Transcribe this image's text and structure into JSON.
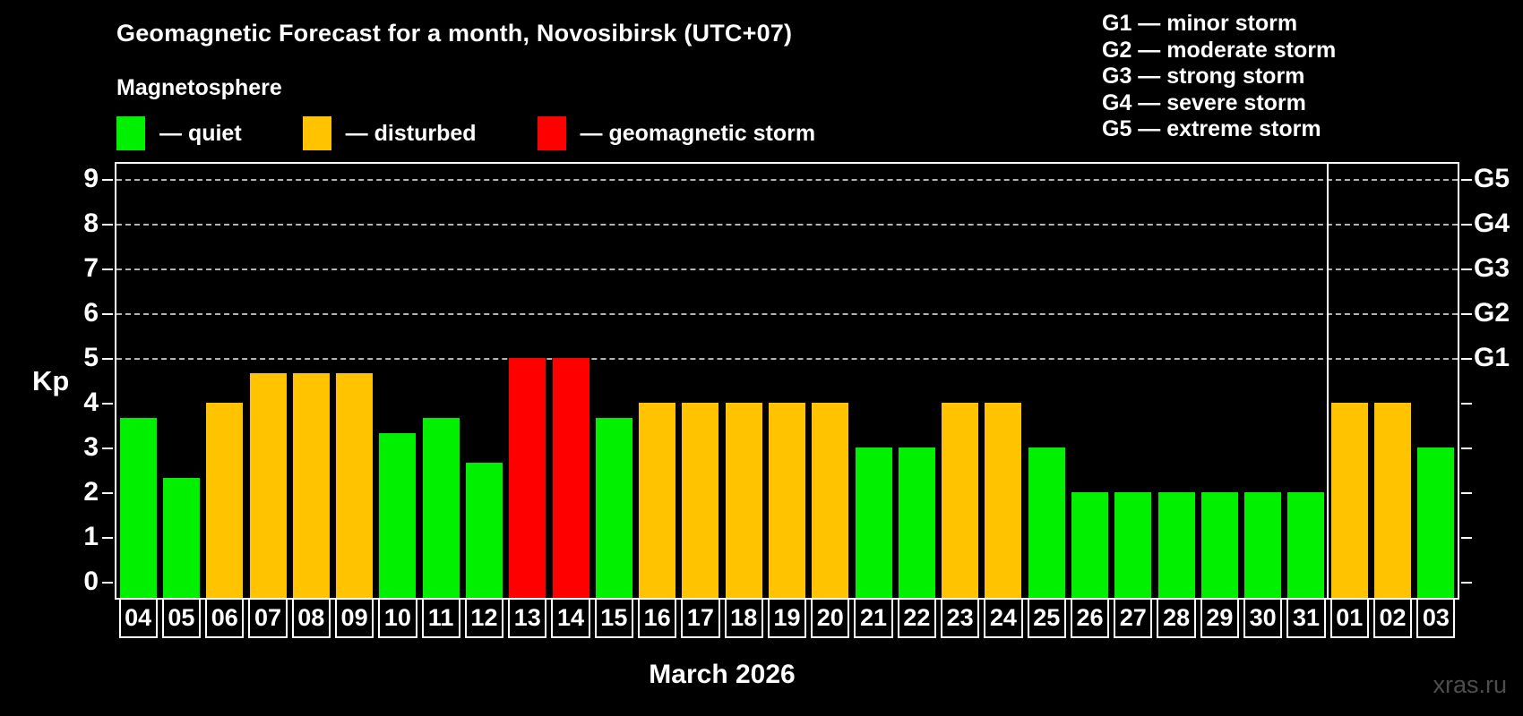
{
  "title": "Geomagnetic Forecast for a month, Novosibirsk (UTC+07)",
  "subtitle": "Magnetosphere",
  "legend": {
    "items": [
      {
        "key": "quiet",
        "label": "— quiet"
      },
      {
        "key": "disturbed",
        "label": "— disturbed"
      },
      {
        "key": "storm",
        "label": "— geomagnetic storm"
      }
    ]
  },
  "storm_scale_legend": {
    "items": [
      "G1 — minor storm",
      "G2 — moderate storm",
      "G3 — strong storm",
      "G4 — severe storm",
      "G5 — extreme storm"
    ]
  },
  "chart_data": {
    "type": "bar",
    "title": "Geomagnetic Forecast for a month, Novosibirsk (UTC+07)",
    "ylabel": "Kp",
    "xlabel": "March 2026",
    "ylim": [
      0,
      9
    ],
    "y_ticks": [
      0,
      1,
      2,
      3,
      4,
      5,
      6,
      7,
      8,
      9
    ],
    "grid_dashed_at": [
      5,
      6,
      7,
      8,
      9
    ],
    "legend_position": "top",
    "categories": [
      "04",
      "05",
      "06",
      "07",
      "08",
      "09",
      "10",
      "11",
      "12",
      "13",
      "14",
      "15",
      "16",
      "17",
      "18",
      "19",
      "20",
      "21",
      "22",
      "23",
      "24",
      "25",
      "26",
      "27",
      "28",
      "29",
      "30",
      "31",
      "01",
      "02",
      "03"
    ],
    "values": [
      3.67,
      2.33,
      4,
      4.67,
      4.67,
      4.67,
      3.33,
      3.67,
      2.67,
      5,
      5,
      3.67,
      4,
      4,
      4,
      4,
      4,
      3,
      3,
      4,
      4,
      3,
      2,
      2,
      2,
      2,
      2,
      2,
      4,
      4,
      3
    ],
    "statuses": [
      "quiet",
      "quiet",
      "disturbed",
      "disturbed",
      "disturbed",
      "disturbed",
      "quiet",
      "quiet",
      "quiet",
      "storm",
      "storm",
      "quiet",
      "disturbed",
      "disturbed",
      "disturbed",
      "disturbed",
      "disturbed",
      "quiet",
      "quiet",
      "disturbed",
      "disturbed",
      "quiet",
      "quiet",
      "quiet",
      "quiet",
      "quiet",
      "quiet",
      "quiet",
      "disturbed",
      "disturbed",
      "quiet"
    ],
    "right_axis": [
      {
        "label": "G1",
        "kp": 5
      },
      {
        "label": "G2",
        "kp": 6
      },
      {
        "label": "G3",
        "kp": 7
      },
      {
        "label": "G4",
        "kp": 8
      },
      {
        "label": "G5",
        "kp": 9
      }
    ],
    "month_separator_after_index": 27
  },
  "footer": {
    "xaxis_title": "March 2026",
    "watermark": "xras.ru"
  },
  "colors": {
    "quiet": "#00f000",
    "disturbed": "#ffc300",
    "storm": "#ff0000",
    "grid": "#b4b4b4",
    "axis": "#ffffff",
    "background": "#000000",
    "watermark": "#4e4e4e"
  }
}
